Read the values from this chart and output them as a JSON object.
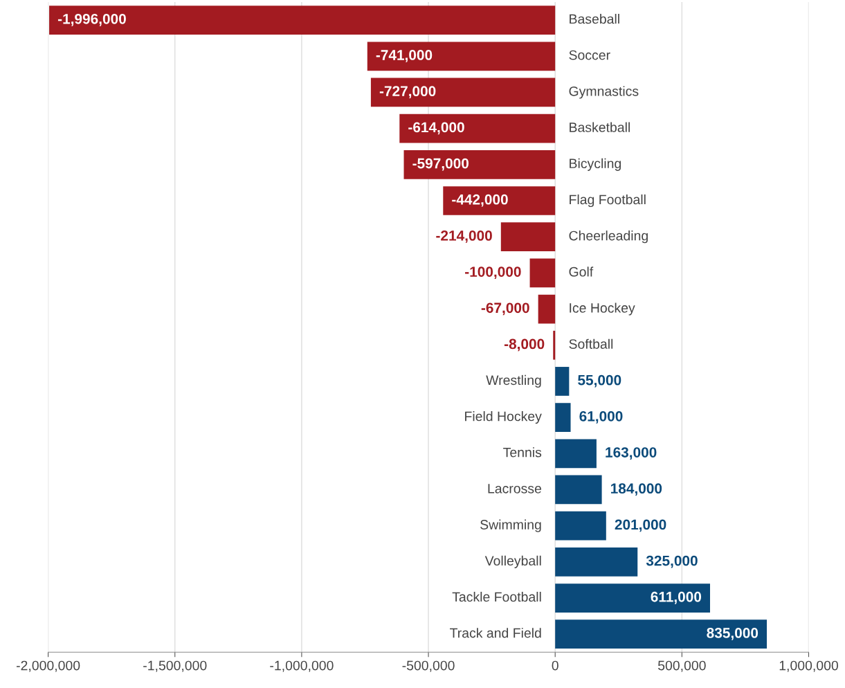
{
  "chart_data": {
    "type": "bar",
    "orientation": "horizontal",
    "categories": [
      "Baseball",
      "Soccer",
      "Gymnastics",
      "Basketball",
      "Bicycling",
      "Flag Football",
      "Cheerleading",
      "Golf",
      "Ice Hockey",
      "Softball",
      "Wrestling",
      "Field Hockey",
      "Tennis",
      "Lacrosse",
      "Swimming",
      "Volleyball",
      "Tackle Football",
      "Track and Field"
    ],
    "values": [
      -1996000,
      -741000,
      -727000,
      -614000,
      -597000,
      -442000,
      -214000,
      -100000,
      -67000,
      -8000,
      55000,
      61000,
      163000,
      184000,
      201000,
      325000,
      611000,
      835000
    ],
    "colors": [
      "#a31b21",
      "#a31b21",
      "#a31b21",
      "#a31b21",
      "#a31b21",
      "#a31b21",
      "#a31b21",
      "#a31b21",
      "#a31b21",
      "#a31b21",
      "#0b4a7a",
      "#0b4a7a",
      "#0b4a7a",
      "#0b4a7a",
      "#0b4a7a",
      "#0b4a7a",
      "#0b4a7a",
      "#0b4a7a"
    ],
    "xlim": [
      -2000000,
      1000000
    ],
    "xticks": [
      {
        "value": -2000000,
        "label": "-2,000,000"
      },
      {
        "value": -1500000,
        "label": "-1,500,000"
      },
      {
        "value": -1000000,
        "label": "-1,000,000"
      },
      {
        "value": -500000,
        "label": "-500,000"
      },
      0,
      {
        "value": 500000,
        "label": "500,000"
      },
      {
        "value": 1000000,
        "label": "1,000,000"
      }
    ],
    "value_labels": [
      "-1,996,000",
      "-741,000",
      "-727,000",
      "-614,000",
      "-597,000",
      "-442,000",
      "-214,000",
      "-100,000",
      "-67,000",
      "-8,000",
      "55,000",
      "61,000",
      "163,000",
      "184,000",
      "201,000",
      "325,000",
      "611,000",
      "835,000"
    ],
    "grid": "x"
  }
}
